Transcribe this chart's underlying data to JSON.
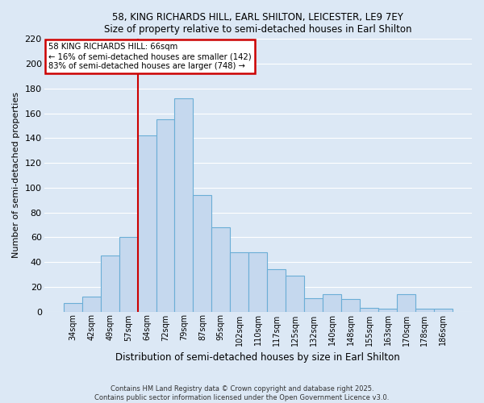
{
  "title_line1": "58, KING RICHARDS HILL, EARL SHILTON, LEICESTER, LE9 7EY",
  "title_line2": "Size of property relative to semi-detached houses in Earl Shilton",
  "xlabel": "Distribution of semi-detached houses by size in Earl Shilton",
  "ylabel": "Number of semi-detached properties",
  "categories": [
    "34sqm",
    "42sqm",
    "49sqm",
    "57sqm",
    "64sqm",
    "72sqm",
    "79sqm",
    "87sqm",
    "95sqm",
    "102sqm",
    "110sqm",
    "117sqm",
    "125sqm",
    "132sqm",
    "140sqm",
    "148sqm",
    "155sqm",
    "163sqm",
    "170sqm",
    "178sqm",
    "186sqm"
  ],
  "values": [
    7,
    12,
    45,
    60,
    142,
    155,
    172,
    94,
    68,
    48,
    48,
    34,
    29,
    11,
    14,
    10,
    3,
    2,
    14,
    2,
    2
  ],
  "bar_color": "#c5d8ee",
  "bar_edge_color": "#6baed6",
  "vline_color": "#cc0000",
  "annotation_title": "58 KING RICHARDS HILL: 66sqm",
  "annotation_line1": "← 16% of semi-detached houses are smaller (142)",
  "annotation_line2": "83% of semi-detached houses are larger (748) →",
  "annotation_box_color": "#ffffff",
  "annotation_box_edge": "#cc0000",
  "background_color": "#dce8f5",
  "grid_color": "#ffffff",
  "ylim": [
    0,
    220
  ],
  "yticks": [
    0,
    20,
    40,
    60,
    80,
    100,
    120,
    140,
    160,
    180,
    200,
    220
  ],
  "footer_line1": "Contains HM Land Registry data © Crown copyright and database right 2025.",
  "footer_line2": "Contains public sector information licensed under the Open Government Licence v3.0."
}
